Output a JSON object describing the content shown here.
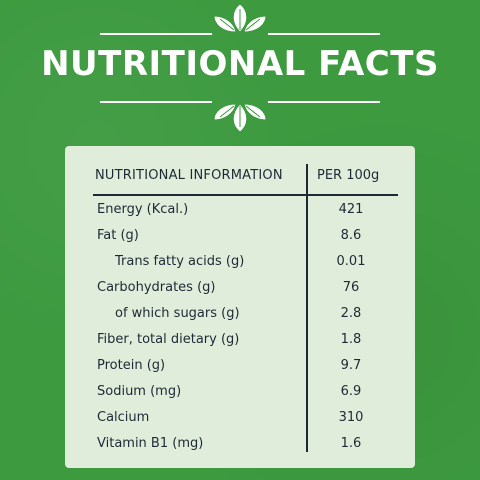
{
  "title": "NUTRITIONAL FACTS",
  "colors": {
    "background": "#3d9a3f",
    "card": "#e0eddb",
    "ink": "#1d2a36",
    "ornament": "#ffffff"
  },
  "table": {
    "header_left": "NUTRITIONAL INFORMATION",
    "header_right": "PER 100g",
    "rows": [
      {
        "label": "Energy (Kcal.)",
        "value": "421"
      },
      {
        "label": "Fat (g)",
        "value": "8.6"
      },
      {
        "label": "Trans fatty acids (g)",
        "value": "0.01"
      },
      {
        "label": "Carbohydrates (g)",
        "value": "76"
      },
      {
        "label": "of which sugars (g)",
        "value": "2.8"
      },
      {
        "label": "Fiber, total dietary (g)",
        "value": "1.8"
      },
      {
        "label": "Protein (g)",
        "value": "9.7"
      },
      {
        "label": "Sodium (mg)",
        "value": "6.9"
      },
      {
        "label": "Calcium",
        "value": "310"
      },
      {
        "label": "Vitamin B1 (mg)",
        "value": "1.6"
      }
    ]
  },
  "icons": [
    "leaf-ornament-icon",
    "leaf-ornament-icon"
  ]
}
